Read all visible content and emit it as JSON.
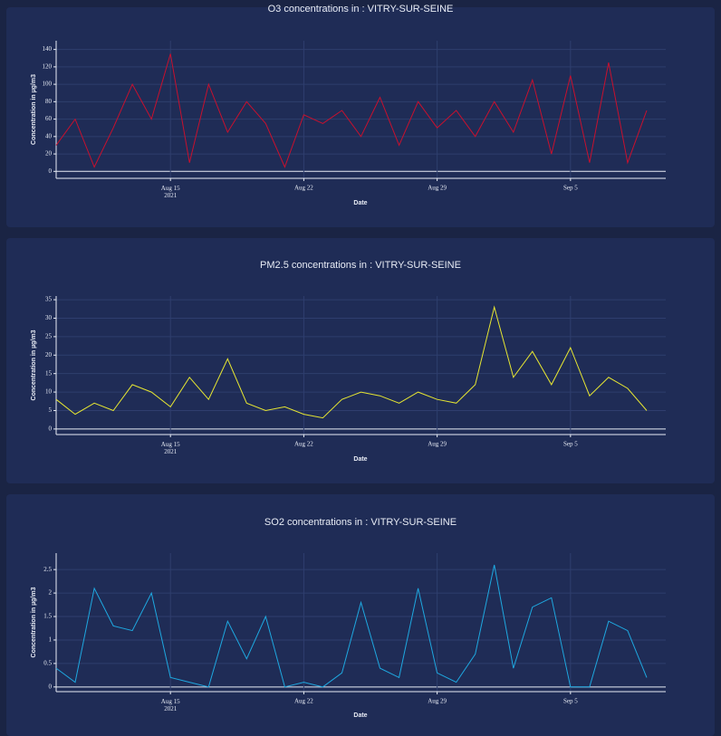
{
  "chart_data": [
    {
      "type": "line",
      "title": "O3 concentrations in : VITRY-SUR-SEINE",
      "x_label": "Date",
      "y_label": "Concentration in µg/m3",
      "color": "#c8102e",
      "x": [
        "2021-08-09",
        "2021-08-10",
        "2021-08-11",
        "2021-08-12",
        "2021-08-13",
        "2021-08-14",
        "2021-08-15",
        "2021-08-16",
        "2021-08-17",
        "2021-08-18",
        "2021-08-19",
        "2021-08-20",
        "2021-08-21",
        "2021-08-22",
        "2021-08-23",
        "2021-08-24",
        "2021-08-25",
        "2021-08-26",
        "2021-08-27",
        "2021-08-28",
        "2021-08-29",
        "2021-08-30",
        "2021-08-31",
        "2021-09-01",
        "2021-09-02",
        "2021-09-03",
        "2021-09-04",
        "2021-09-05",
        "2021-09-06",
        "2021-09-07",
        "2021-09-08",
        "2021-09-09"
      ],
      "values": [
        30,
        60,
        5,
        50,
        100,
        60,
        135,
        10,
        100,
        45,
        80,
        55,
        5,
        65,
        55,
        70,
        40,
        85,
        30,
        80,
        50,
        70,
        40,
        80,
        45,
        105,
        20,
        110,
        10,
        125,
        10,
        70
      ],
      "xlim": [
        "2021-08-09",
        "2021-09-10"
      ],
      "xticks": [
        {
          "value": "2021-08-15",
          "label": "Aug 15\n2021"
        },
        {
          "value": "2021-08-22",
          "label": "Aug 22"
        },
        {
          "value": "2021-08-29",
          "label": "Aug 29"
        },
        {
          "value": "2021-09-05",
          "label": "Sep 5"
        }
      ],
      "ylim": [
        -8,
        150
      ],
      "yticks": [
        0,
        20,
        40,
        60,
        80,
        100,
        120,
        140
      ],
      "grid": true
    },
    {
      "type": "line",
      "title": "PM2.5 concentrations in : VITRY-SUR-SEINE",
      "x_label": "Date",
      "y_label": "Concentration in µg/m3",
      "color": "#e6e632",
      "x": [
        "2021-08-09",
        "2021-08-10",
        "2021-08-11",
        "2021-08-12",
        "2021-08-13",
        "2021-08-14",
        "2021-08-15",
        "2021-08-16",
        "2021-08-17",
        "2021-08-18",
        "2021-08-19",
        "2021-08-20",
        "2021-08-21",
        "2021-08-22",
        "2021-08-23",
        "2021-08-24",
        "2021-08-25",
        "2021-08-26",
        "2021-08-27",
        "2021-08-28",
        "2021-08-29",
        "2021-08-30",
        "2021-08-31",
        "2021-09-01",
        "2021-09-02",
        "2021-09-03",
        "2021-09-04",
        "2021-09-05",
        "2021-09-06",
        "2021-09-07",
        "2021-09-08",
        "2021-09-09"
      ],
      "values": [
        8,
        4,
        7,
        5,
        12,
        10,
        6,
        14,
        8,
        19,
        7,
        5,
        6,
        4,
        3,
        8,
        10,
        9,
        7,
        10,
        8,
        7,
        12,
        33,
        14,
        21,
        12,
        22,
        9,
        14,
        11,
        5
      ],
      "xlim": [
        "2021-08-09",
        "2021-09-10"
      ],
      "xticks": [
        {
          "value": "2021-08-15",
          "label": "Aug 15\n2021"
        },
        {
          "value": "2021-08-22",
          "label": "Aug 22"
        },
        {
          "value": "2021-08-29",
          "label": "Aug 29"
        },
        {
          "value": "2021-09-05",
          "label": "Sep 5"
        }
      ],
      "ylim": [
        -1.5,
        36
      ],
      "yticks": [
        0,
        5,
        10,
        15,
        20,
        25,
        30,
        35
      ],
      "grid": true
    },
    {
      "type": "line",
      "title": "SO2 concentrations in : VITRY-SUR-SEINE",
      "x_label": "Date",
      "y_label": "Concentration in µg/m3",
      "color": "#1ea8e0",
      "x": [
        "2021-08-09",
        "2021-08-10",
        "2021-08-11",
        "2021-08-12",
        "2021-08-13",
        "2021-08-14",
        "2021-08-15",
        "2021-08-16",
        "2021-08-17",
        "2021-08-18",
        "2021-08-19",
        "2021-08-20",
        "2021-08-21",
        "2021-08-22",
        "2021-08-23",
        "2021-08-24",
        "2021-08-25",
        "2021-08-26",
        "2021-08-27",
        "2021-08-28",
        "2021-08-29",
        "2021-08-30",
        "2021-08-31",
        "2021-09-01",
        "2021-09-02",
        "2021-09-03",
        "2021-09-04",
        "2021-09-05",
        "2021-09-06",
        "2021-09-07",
        "2021-09-08",
        "2021-09-09"
      ],
      "values": [
        0.4,
        0.1,
        2.1,
        1.3,
        1.2,
        2.0,
        0.2,
        0.1,
        0,
        1.4,
        0.6,
        1.5,
        0,
        0.1,
        0,
        0.3,
        1.8,
        0.4,
        0.2,
        2.1,
        0.3,
        0.1,
        0.7,
        2.6,
        0.4,
        1.7,
        1.9,
        0,
        0,
        1.4,
        1.2,
        0.2
      ],
      "xlim": [
        "2021-08-09",
        "2021-09-10"
      ],
      "xticks": [
        {
          "value": "2021-08-15",
          "label": "Aug 15\n2021"
        },
        {
          "value": "2021-08-22",
          "label": "Aug 22"
        },
        {
          "value": "2021-08-29",
          "label": "Aug 29"
        },
        {
          "value": "2021-09-05",
          "label": "Sep 5"
        }
      ],
      "ylim": [
        -0.1,
        2.85
      ],
      "yticks": [
        0,
        0.5,
        1,
        1.5,
        2,
        2.5
      ],
      "grid": true
    }
  ]
}
